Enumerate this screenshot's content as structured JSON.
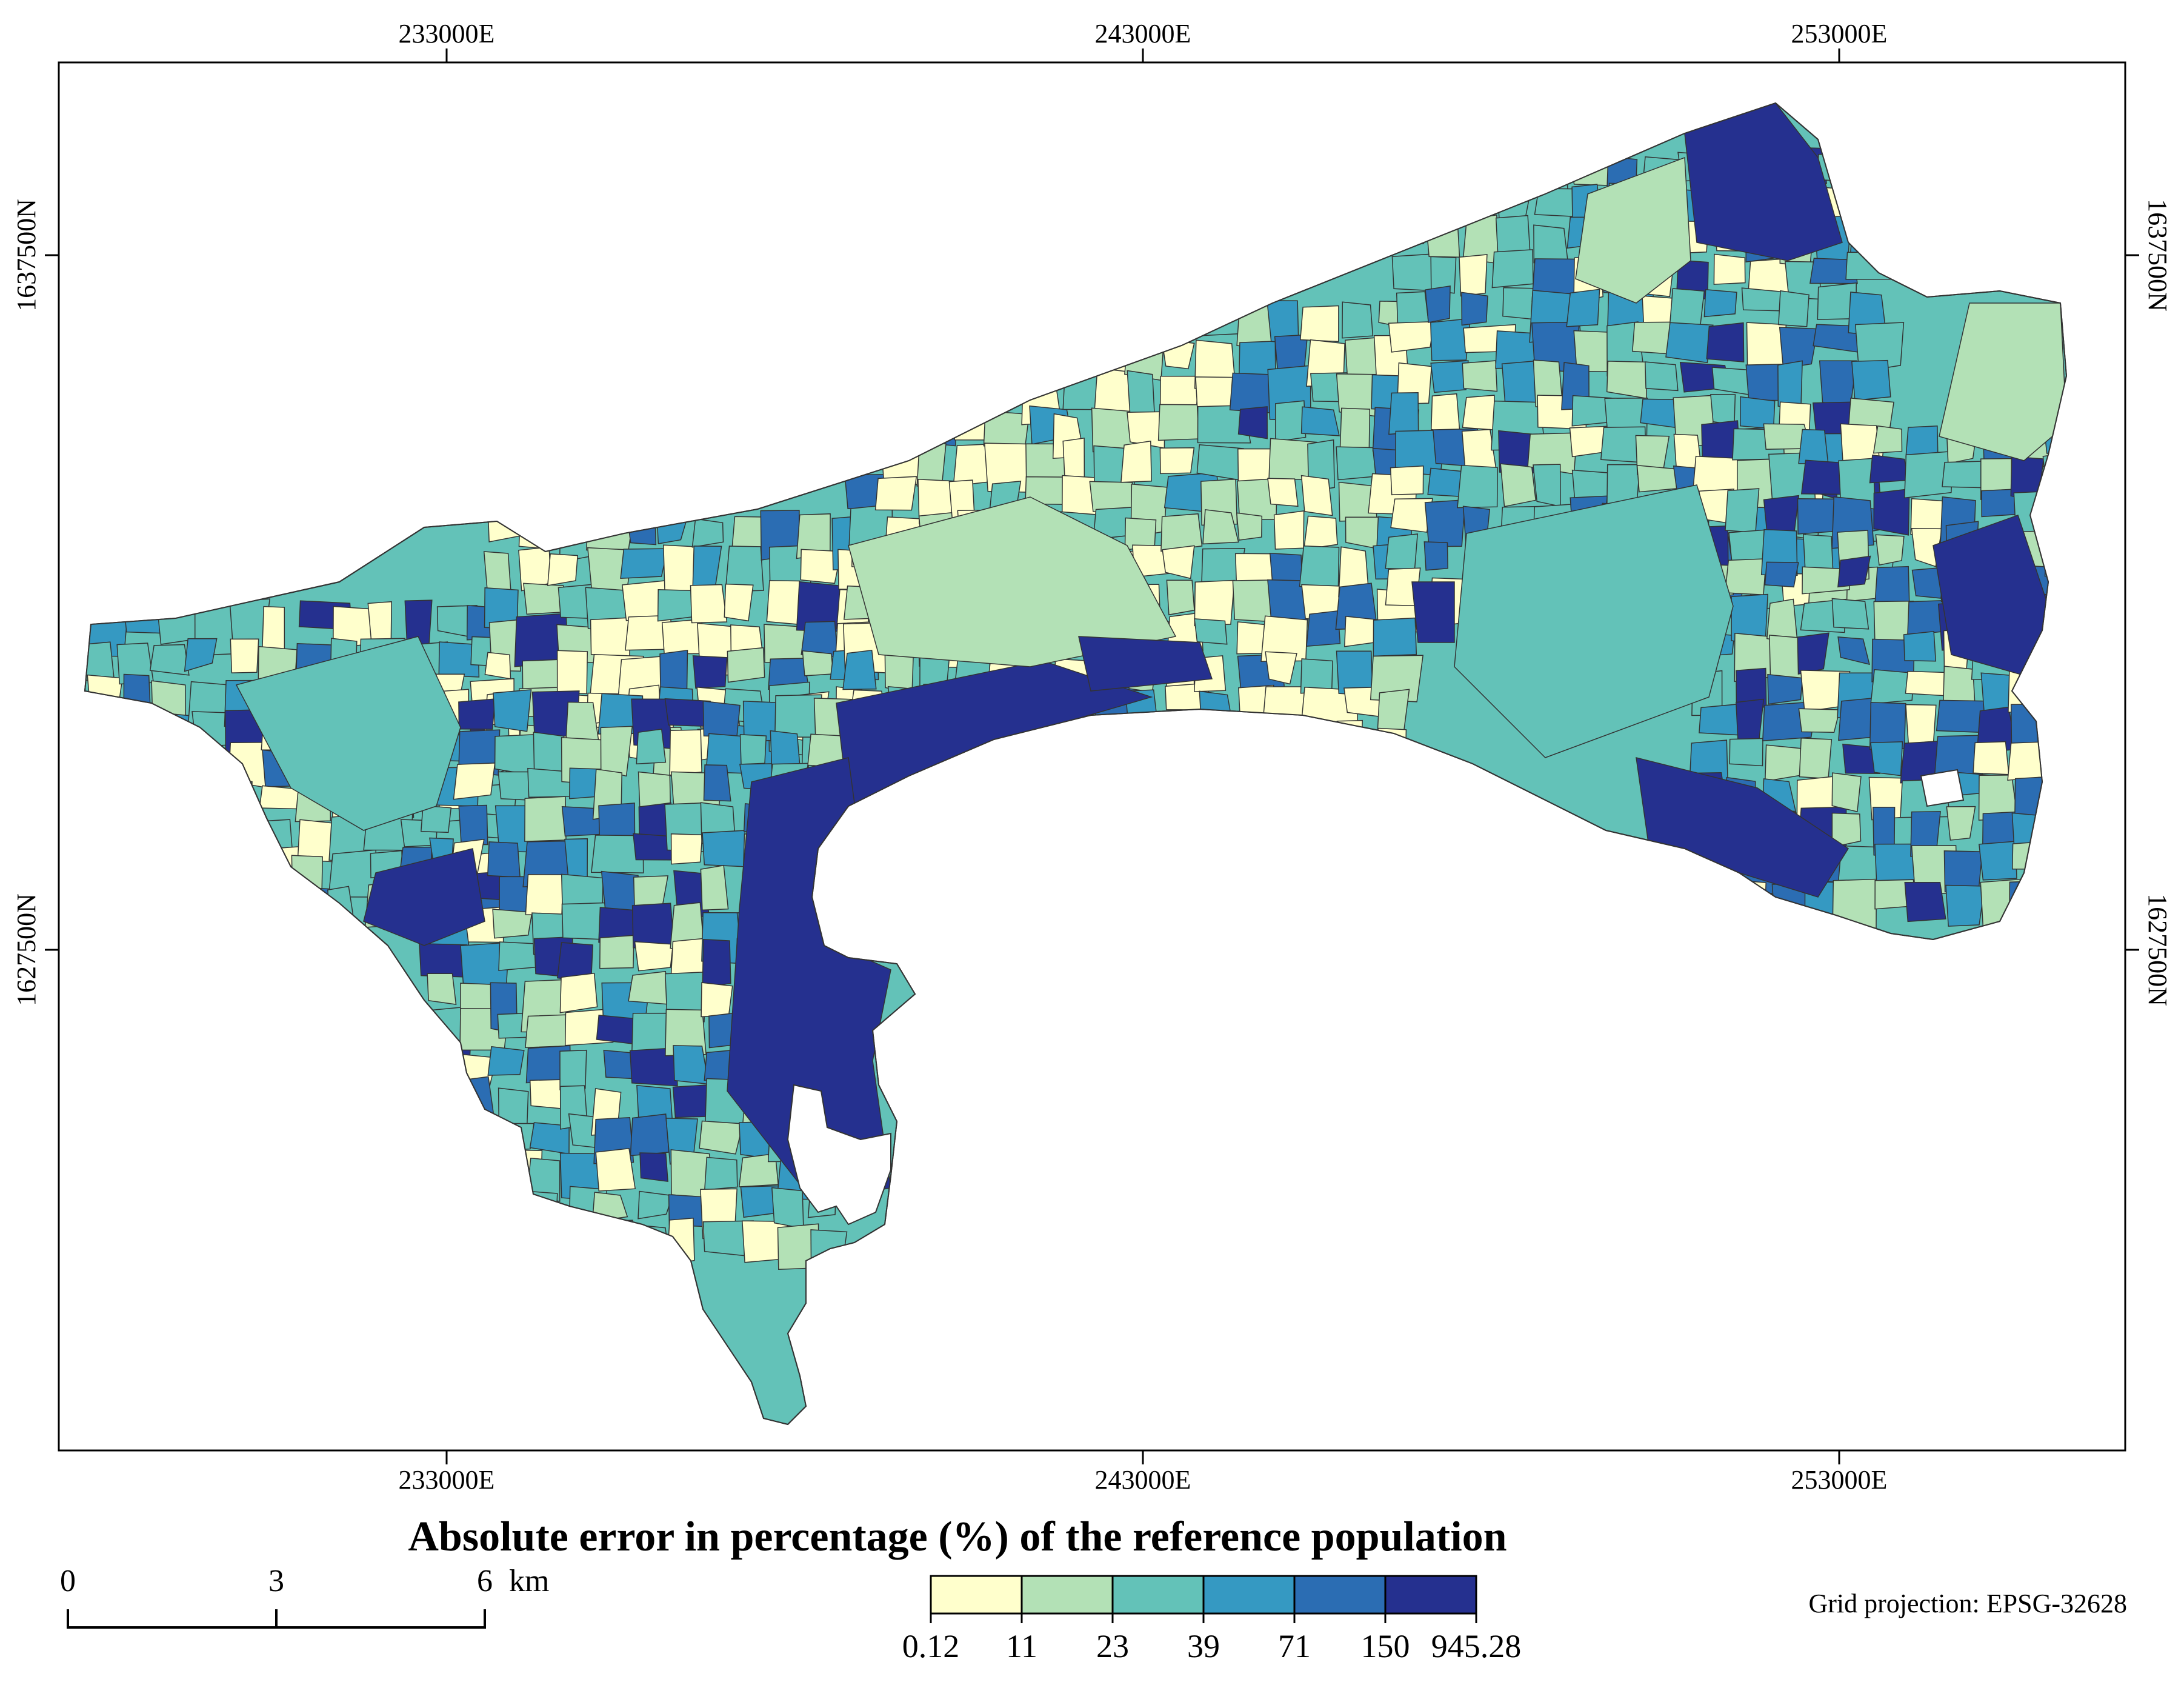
{
  "map": {
    "top_ticks": [
      "233000E",
      "243000E",
      "253000E"
    ],
    "bottom_ticks": [
      "233000E",
      "243000E",
      "253000E"
    ],
    "left_ticks": [
      "1637500N",
      "1627500N"
    ],
    "right_ticks": [
      "1637500N",
      "1627500N"
    ]
  },
  "legend": {
    "title": "Absolute error in percentage (%) of the reference population",
    "break_labels": [
      "0.12",
      "11",
      "23",
      "39",
      "71",
      "150",
      "945.28"
    ],
    "colors": [
      "#ffffcc",
      "#b3e1b6",
      "#63c2b8",
      "#3599c2",
      "#2b6db3",
      "#25308f"
    ]
  },
  "scale_bar": {
    "labels": [
      "0",
      "3",
      "6"
    ],
    "unit": "km"
  },
  "projection": "Grid projection: EPSG-32628"
}
